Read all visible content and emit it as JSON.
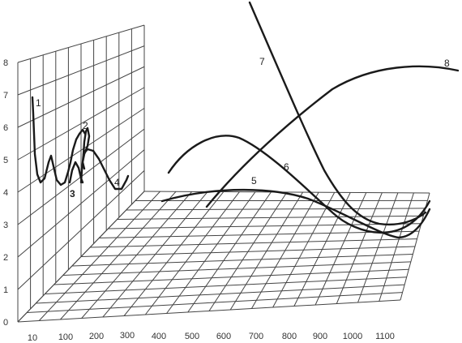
{
  "chart_data": {
    "type": "line",
    "title": "",
    "xlabel": "",
    "ylabel": "",
    "wall_y_ticks": [
      "0",
      "1",
      "2",
      "3",
      "4",
      "5",
      "6",
      "7",
      "8"
    ],
    "floor_x_ticks": [
      "10",
      "100",
      "200",
      "300",
      "400",
      "500",
      "600",
      "700",
      "800",
      "900",
      "1000",
      "1100"
    ],
    "wall_curve_labels": [
      "1",
      "2",
      "3",
      "4"
    ],
    "floor_curve_labels": [
      "5",
      "6",
      "7",
      "8"
    ],
    "series": [
      {
        "name": "1"
      },
      {
        "name": "2"
      },
      {
        "name": "3"
      },
      {
        "name": "4"
      },
      {
        "name": "5"
      },
      {
        "name": "6"
      },
      {
        "name": "7"
      },
      {
        "name": "8"
      }
    ],
    "colors": {
      "line": "#1a1a1a",
      "grid": "#444444",
      "background": "#ffffff"
    }
  }
}
